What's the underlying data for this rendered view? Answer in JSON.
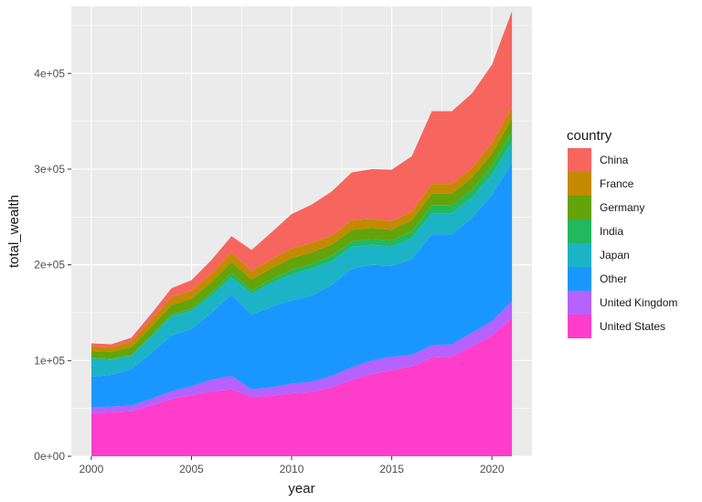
{
  "chart_data": {
    "type": "area",
    "stacked": true,
    "xlabel": "year",
    "ylabel": "total_wealth",
    "xlim": [
      1999.0,
      2022.0
    ],
    "ylim": [
      0,
      470000
    ],
    "x_ticks": [
      2000,
      2005,
      2010,
      2015,
      2020
    ],
    "x_tick_labels": [
      "2000",
      "2005",
      "2010",
      "2015",
      "2020"
    ],
    "y_ticks": [
      0,
      100000,
      200000,
      300000,
      400000
    ],
    "y_tick_labels": [
      "0e+00",
      "1e+05",
      "2e+05",
      "3e+05",
      "4e+05"
    ],
    "grid": true,
    "legend_title": "country",
    "legend_position": "right",
    "x": [
      2000,
      2001,
      2002,
      2003,
      2004,
      2005,
      2006,
      2007,
      2008,
      2009,
      2010,
      2011,
      2012,
      2013,
      2014,
      2015,
      2016,
      2017,
      2018,
      2019,
      2020,
      2021
    ],
    "series": [
      {
        "name": "United States",
        "color": "#FF3DCB",
        "values": [
          45000,
          46000,
          47000,
          53000,
          60000,
          64000,
          68000,
          70000,
          62000,
          63000,
          66000,
          67000,
          72000,
          80000,
          86000,
          90000,
          94000,
          103000,
          104000,
          115000,
          126000,
          145000
        ]
      },
      {
        "name": "United Kingdom",
        "color": "#B562FF",
        "values": [
          6000,
          6000,
          6000,
          7000,
          8000,
          9000,
          12000,
          14000,
          8000,
          9000,
          10000,
          11000,
          12000,
          13000,
          14000,
          14000,
          12000,
          13000,
          13000,
          14000,
          15000,
          17000
        ]
      },
      {
        "name": "Other",
        "color": "#1A97FF",
        "values": [
          32000,
          33000,
          38000,
          48000,
          58000,
          60000,
          70000,
          85000,
          78000,
          84000,
          87000,
          90000,
          95000,
          103000,
          100000,
          95000,
          100000,
          116000,
          115000,
          120000,
          132000,
          145000
        ]
      },
      {
        "name": "Japan",
        "color": "#1CB3C6",
        "values": [
          19000,
          16000,
          14000,
          17000,
          20000,
          19000,
          18000,
          18000,
          22000,
          25000,
          27000,
          28000,
          25000,
          23000,
          21000,
          20000,
          22000,
          22000,
          22000,
          21000,
          21000,
          21000
        ]
      },
      {
        "name": "India",
        "color": "#22B85D",
        "values": [
          1000,
          1000,
          1000,
          1500,
          2000,
          2500,
          3000,
          4000,
          3500,
          4000,
          5000,
          5000,
          5500,
          5500,
          6000,
          6500,
          7000,
          8000,
          8000,
          8500,
          9000,
          11000
        ]
      },
      {
        "name": "Germany",
        "color": "#64A30A",
        "values": [
          7000,
          7000,
          8000,
          9000,
          10000,
          10000,
          11000,
          12000,
          11000,
          11500,
          12000,
          12000,
          11500,
          12000,
          11500,
          11000,
          11500,
          12500,
          12500,
          12500,
          13000,
          14000
        ]
      },
      {
        "name": "France",
        "color": "#C38A00",
        "values": [
          5000,
          5000,
          6000,
          7500,
          8500,
          8500,
          9000,
          10000,
          9000,
          9500,
          10000,
          10000,
          9500,
          10000,
          9500,
          9000,
          9000,
          10000,
          10000,
          10000,
          11000,
          12000
        ]
      },
      {
        "name": "China",
        "color": "#F6665E",
        "values": [
          3000,
          3000,
          4000,
          6000,
          9000,
          11000,
          14000,
          17000,
          22000,
          28000,
          36000,
          40000,
          46000,
          50000,
          52000,
          54000,
          58000,
          76000,
          76000,
          78000,
          82000,
          100000
        ]
      }
    ]
  }
}
